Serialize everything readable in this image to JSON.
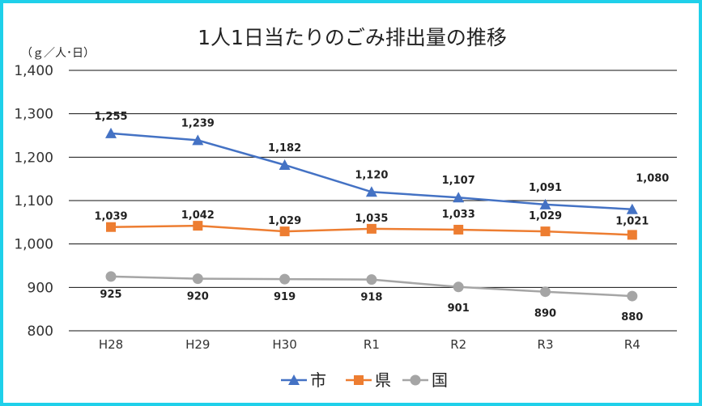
{
  "chart_data": {
    "type": "line",
    "title": "1人1日当たりのごみ排出量の推移",
    "unit_label": "（ｇ／人･日）",
    "categories": [
      "H28",
      "H29",
      "H30",
      "R1",
      "R2",
      "R3",
      "R4"
    ],
    "ylim": [
      800,
      1400
    ],
    "yticks": [
      800,
      900,
      1000,
      1100,
      1200,
      1300,
      1400
    ],
    "ytick_labels": [
      "800",
      "900",
      "1,000",
      "1,100",
      "1,200",
      "1,300",
      "1,400"
    ],
    "grid": true,
    "legend_position": "bottom",
    "series": [
      {
        "name": "市",
        "marker": "triangle",
        "color": "#4472c4",
        "values": [
          1255,
          1239,
          1182,
          1120,
          1107,
          1091,
          1080
        ],
        "labels": [
          "1,255",
          "1,239",
          "1,182",
          "1,120",
          "1,107",
          "1,091",
          "1,080"
        ]
      },
      {
        "name": "県",
        "marker": "square",
        "color": "#ed7d31",
        "values": [
          1039,
          1042,
          1029,
          1035,
          1033,
          1029,
          1021
        ],
        "labels": [
          "1,039",
          "1,042",
          "1,029",
          "1,035",
          "1,033",
          "1,029",
          "1,021"
        ]
      },
      {
        "name": "国",
        "marker": "circle",
        "color": "#a5a5a5",
        "values": [
          925,
          920,
          919,
          918,
          901,
          890,
          880
        ],
        "labels": [
          "925",
          "920",
          "919",
          "918",
          "901",
          "890",
          "880"
        ]
      }
    ]
  }
}
